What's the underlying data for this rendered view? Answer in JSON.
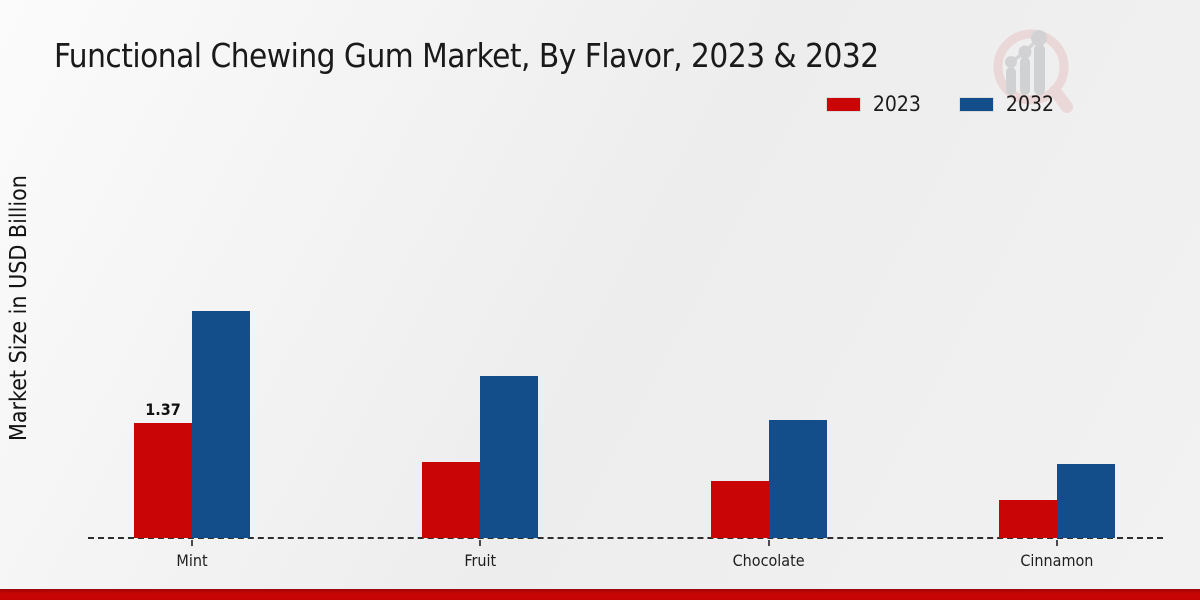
{
  "title": "Functional Chewing Gum Market, By Flavor, 2023 & 2032",
  "chart_data": {
    "type": "bar",
    "title": "Functional Chewing Gum Market, By Flavor, 2023 & 2032",
    "ylabel": "Market Size in USD Billion",
    "xlabel": "",
    "categories": [
      "Mint",
      "Fruit",
      "Chocolate",
      "Cinnamon"
    ],
    "series": [
      {
        "name": "2023",
        "color": "#c90505",
        "values": [
          1.37,
          0.91,
          0.68,
          0.45
        ]
      },
      {
        "name": "2032",
        "color": "#144e8a",
        "values": [
          2.7,
          1.93,
          1.41,
          0.88
        ]
      }
    ],
    "data_labels": [
      {
        "series_index": 0,
        "category_index": 0,
        "text": "1.37"
      }
    ],
    "ylim": [
      0,
      3.2
    ],
    "grid": false,
    "legend_position": "top-right",
    "baseline_style": "dashed"
  },
  "watermark": {
    "name": "market-research-future-logo"
  },
  "footer": {
    "accent_color": "#c40505"
  }
}
